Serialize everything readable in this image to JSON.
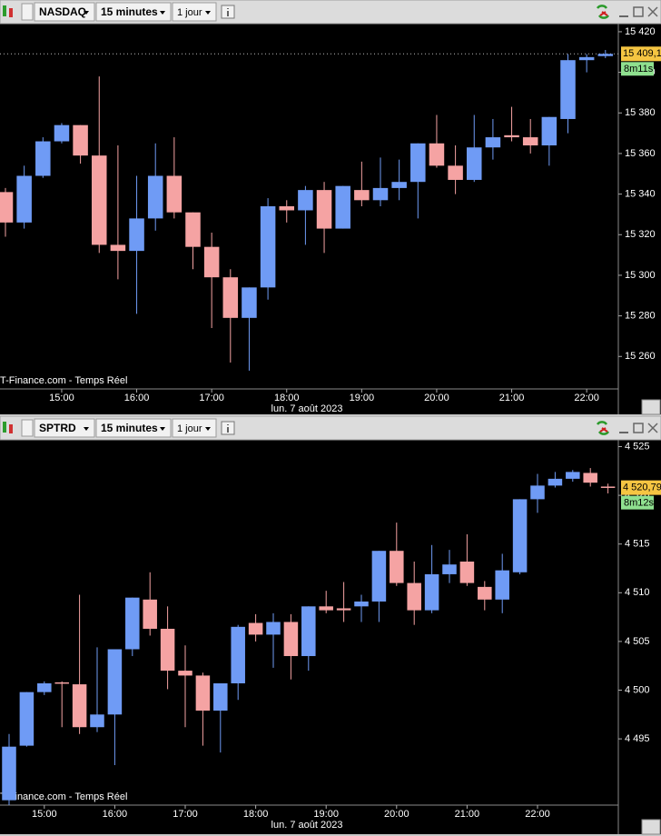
{
  "chart_data": [
    {
      "type": "candlestick",
      "symbol": "NASDAQ",
      "interval": "15 minutes",
      "range": "1 jour",
      "categories": [
        null,
        null,
        null,
        "15:00",
        null,
        null,
        null,
        "16:00",
        null,
        null,
        null,
        "17:00",
        null,
        null,
        null,
        "18:00",
        null,
        null,
        null,
        "19:00",
        null,
        null,
        null,
        "20:00",
        null,
        null,
        null,
        "21:00",
        null,
        null,
        null,
        "22:00",
        null
      ],
      "open": [
        15341,
        15326,
        15349,
        15366,
        15374,
        15359,
        15315,
        15312,
        15328,
        15349,
        15331,
        15314,
        15299,
        15279,
        15294,
        15334,
        15332,
        15342,
        15323,
        15342,
        15337,
        15343,
        15346,
        15365,
        15354,
        15347,
        15363,
        15369,
        15368,
        15364,
        15377,
        15406,
        15408
      ],
      "high": [
        15343,
        15354,
        15368,
        15375,
        15374,
        15398,
        15364,
        15349,
        15365,
        15368,
        15331,
        15321,
        15303,
        15294,
        15338,
        15337,
        15344,
        15346,
        15344,
        15356,
        15358,
        15357,
        15365,
        15379,
        15364,
        15379,
        15377,
        15383,
        15377,
        15378,
        15409,
        15409,
        15411
      ],
      "low": [
        15319,
        15323,
        15348,
        15365,
        15355,
        15311,
        15298,
        15281,
        15322,
        15328,
        15303,
        15274,
        15257,
        15253,
        15288,
        15326,
        15315,
        15311,
        15323,
        15334,
        15334,
        15337,
        15328,
        15353,
        15340,
        15346,
        15357,
        15366,
        15360,
        15354,
        15370,
        15400,
        15407
      ],
      "close": [
        15326,
        15349,
        15366,
        15374,
        15359,
        15315,
        15312,
        15328,
        15349,
        15331,
        15314,
        15299,
        15279,
        15294,
        15334,
        15332,
        15342,
        15323,
        15344,
        15337,
        15343,
        15346,
        15365,
        15354,
        15347,
        15363,
        15368,
        15368,
        15364,
        15378,
        15406,
        15407.5,
        15409.1
      ],
      "up_color": "#6f9bf5",
      "down_color": "#f5a3a3",
      "ylim": [
        15244,
        15424
      ],
      "yticks": [
        {
          "value": 15260,
          "label": "15 260"
        },
        {
          "value": 15280,
          "label": "15 280"
        },
        {
          "value": 15300,
          "label": "15 300"
        },
        {
          "value": 15320,
          "label": "15 320"
        },
        {
          "value": 15340,
          "label": "15 340"
        },
        {
          "value": 15360,
          "label": "15 360"
        },
        {
          "value": 15380,
          "label": "15 380"
        },
        {
          "value": 15400,
          "label": "15 400"
        },
        {
          "value": 15420,
          "label": "15 420"
        }
      ],
      "last_price": {
        "value": 15409.1,
        "label": "15 409,1"
      },
      "price_line": true,
      "timer": "8m11s",
      "source": "T-Finance.com - Temps Réel",
      "date_label": "lun. 7 août 2023"
    },
    {
      "type": "candlestick",
      "symbol": "SPTRD",
      "interval": "15 minutes",
      "range": "1 jour",
      "categories": [
        null,
        null,
        "15:00",
        null,
        null,
        null,
        "16:00",
        null,
        null,
        null,
        "17:00",
        null,
        null,
        null,
        "18:00",
        null,
        null,
        null,
        "19:00",
        null,
        null,
        null,
        "20:00",
        null,
        null,
        null,
        "21:00",
        null,
        null,
        null,
        "22:00",
        null,
        null,
        null,
        null
      ],
      "open": [
        4488.7,
        4494.3,
        4499.8,
        4500.8,
        4500.6,
        4496.2,
        4497.5,
        4504.2,
        4509.3,
        4506.3,
        4502,
        4501.5,
        4497.9,
        4500.7,
        4506.9,
        4505.7,
        4507,
        4503.5,
        4508.6,
        4508.4,
        4508.6,
        4509.1,
        4514.3,
        4511,
        4508.2,
        4511.9,
        4513.2,
        4510.6,
        4509.3,
        4512.1,
        4519.6,
        4521,
        4521.7,
        4522.3,
        4520.9
      ],
      "high": [
        4495.5,
        4499.8,
        4500.9,
        4500.9,
        4509.8,
        4504.4,
        4504.2,
        4509.5,
        4512.1,
        4508.6,
        4504.6,
        4501.8,
        4500.7,
        4506.7,
        4507.8,
        4507.9,
        4507.8,
        4508.6,
        4510.2,
        4511.1,
        4509.8,
        4514.3,
        4517.2,
        4513.2,
        4514.9,
        4514.4,
        4516,
        4511.2,
        4514,
        4519.6,
        4522.2,
        4522.4,
        4522.6,
        4522.8,
        4521.2
      ],
      "low": [
        4488.2,
        4494.2,
        4499.5,
        4496.2,
        4495.5,
        4495.7,
        4492.3,
        4503.5,
        4505.6,
        4500.1,
        4496.2,
        4494.3,
        4493.6,
        4499,
        4505,
        4502.3,
        4501.1,
        4502,
        4507.9,
        4507,
        4507,
        4507,
        4510.7,
        4506.7,
        4507.9,
        4511,
        4510.7,
        4508.2,
        4507.9,
        4511.9,
        4518.2,
        4520.8,
        4521.4,
        4520.9,
        4520.2
      ],
      "close": [
        4494.2,
        4499.8,
        4500.7,
        4500.7,
        4496.2,
        4497.5,
        4504.2,
        4509.5,
        4506.3,
        4502,
        4501.5,
        4497.9,
        4500.7,
        4506.5,
        4505.7,
        4507,
        4503.5,
        4508.6,
        4508.2,
        4508.2,
        4509.1,
        4514.3,
        4511,
        4508.2,
        4511.9,
        4512.9,
        4511,
        4509.3,
        4512.3,
        4519.6,
        4521,
        4521.7,
        4522.4,
        4521.3,
        4520.79
      ],
      "up_color": "#6f9bf5",
      "down_color": "#f5a3a3",
      "ylim": [
        4488.2,
        4525.7
      ],
      "yticks": [
        {
          "value": 4495,
          "label": "4 495"
        },
        {
          "value": 4500,
          "label": "4 500"
        },
        {
          "value": 4505,
          "label": "4 505"
        },
        {
          "value": 4510,
          "label": "4 510"
        },
        {
          "value": 4515,
          "label": "4 515"
        },
        {
          "value": 4520,
          "label": "4 520"
        },
        {
          "value": 4525,
          "label": "4 525"
        }
      ],
      "last_price": {
        "value": 4520.79,
        "label": "4 520,79"
      },
      "price_line": false,
      "timer": "8m12s",
      "source": "T-Finance.com - Temps Réel",
      "date_label": "lun. 7 août 2023"
    }
  ]
}
